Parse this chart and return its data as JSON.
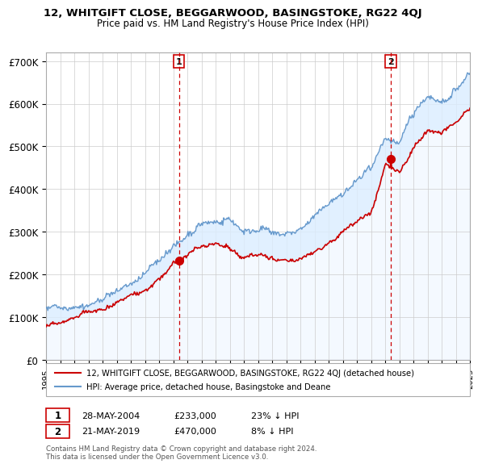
{
  "title": "12, WHITGIFT CLOSE, BEGGARWOOD, BASINGSTOKE, RG22 4QJ",
  "subtitle": "Price paid vs. HM Land Registry's House Price Index (HPI)",
  "ylabel_ticks": [
    "£0",
    "£100K",
    "£200K",
    "£300K",
    "£400K",
    "£500K",
    "£600K",
    "£700K"
  ],
  "ytick_values": [
    0,
    100000,
    200000,
    300000,
    400000,
    500000,
    600000,
    700000
  ],
  "ylim": [
    0,
    720000
  ],
  "legend_house": "12, WHITGIFT CLOSE, BEGGARWOOD, BASINGSTOKE, RG22 4QJ (detached house)",
  "legend_hpi": "HPI: Average price, detached house, Basingstoke and Deane",
  "sale1_date": "28-MAY-2004",
  "sale1_price": "£233,000",
  "sale1_hpi": "23% ↓ HPI",
  "sale2_date": "21-MAY-2019",
  "sale2_price": "£470,000",
  "sale2_hpi": "8% ↓ HPI",
  "footer": "Contains HM Land Registry data © Crown copyright and database right 2024.\nThis data is licensed under the Open Government Licence v3.0.",
  "house_color": "#cc0000",
  "hpi_color": "#6699cc",
  "fill_color": "#ddeeff",
  "sale1_x": 2004.4,
  "sale2_x": 2019.4,
  "background_color": "#ffffff",
  "grid_color": "#cccccc",
  "hpi_keypoints_x": [
    1995,
    1996,
    1997,
    1998,
    1999,
    2000,
    2001,
    2002,
    2003,
    2004,
    2005,
    2006,
    2007,
    2008,
    2009,
    2010,
    2011,
    2012,
    2013,
    2014,
    2015,
    2016,
    2017,
    2018,
    2019,
    2020,
    2021,
    2022,
    2023,
    2024,
    2025
  ],
  "hpi_keypoints_y": [
    118000,
    125000,
    135000,
    148000,
    162000,
    178000,
    200000,
    222000,
    255000,
    290000,
    310000,
    330000,
    340000,
    330000,
    305000,
    310000,
    308000,
    305000,
    315000,
    335000,
    360000,
    390000,
    420000,
    440000,
    510000,
    500000,
    560000,
    610000,
    600000,
    630000,
    670000
  ],
  "house_keypoints_x": [
    1995,
    1996,
    1997,
    1998,
    1999,
    2000,
    2001,
    2002,
    2003,
    2004,
    2005,
    2006,
    2007,
    2008,
    2009,
    2010,
    2011,
    2012,
    2013,
    2014,
    2015,
    2016,
    2017,
    2018,
    2019,
    2020,
    2021,
    2022,
    2023,
    2024,
    2025
  ],
  "house_keypoints_y": [
    80000,
    87000,
    95000,
    105000,
    115000,
    128000,
    148000,
    168000,
    195000,
    233000,
    248000,
    260000,
    268000,
    255000,
    235000,
    238000,
    235000,
    232000,
    242000,
    260000,
    280000,
    305000,
    330000,
    350000,
    470000,
    455000,
    510000,
    545000,
    530000,
    555000,
    590000
  ]
}
